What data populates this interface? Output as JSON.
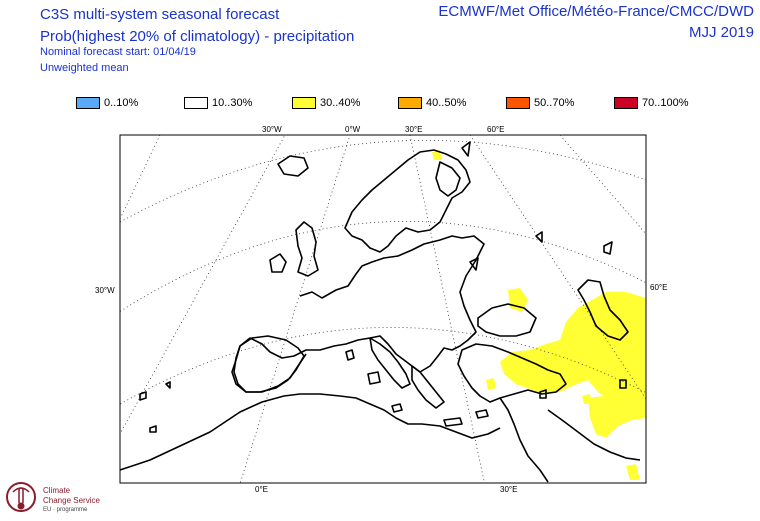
{
  "header": {
    "title": "C3S multi-system seasonal forecast",
    "subtitle": "Prob(highest 20% of climatology) - precipitation",
    "forecast_start": "Nominal forecast start: 01/04/19",
    "mean_type": "Unweighted mean",
    "centres": "ECMWF/Met Office/Météo-France/CMCC/DWD",
    "period": "MJJ 2019"
  },
  "legend": [
    {
      "label": "0..10%",
      "color": "#5aa9f5"
    },
    {
      "label": "10..30%",
      "color": "#ffffff"
    },
    {
      "label": "30..40%",
      "color": "#ffff33"
    },
    {
      "label": "40..50%",
      "color": "#ffaa00"
    },
    {
      "label": "50..70%",
      "color": "#ff5500"
    },
    {
      "label": "70..100%",
      "color": "#cc0022"
    }
  ],
  "grid_labels": {
    "lon_top": [
      "30°W",
      "0°W",
      "30°E",
      "60°E"
    ],
    "lon_bottom": [
      "0°E",
      "30°E"
    ],
    "lat_left": "30°W",
    "lat_right": "60°E"
  },
  "logo": {
    "line1": "Climate",
    "line2": "Change Service",
    "line3": "EU · programme"
  }
}
